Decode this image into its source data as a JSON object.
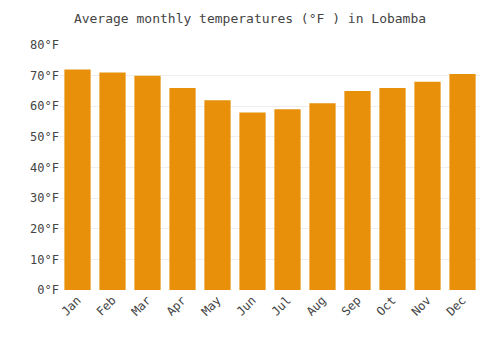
{
  "chart_data": {
    "type": "bar",
    "title": "Average monthly temperatures (°F ) in Lobamba",
    "categories": [
      "Jan",
      "Feb",
      "Mar",
      "Apr",
      "May",
      "Jun",
      "Jul",
      "Aug",
      "Sep",
      "Oct",
      "Nov",
      "Dec"
    ],
    "values": [
      72,
      71,
      70,
      66,
      62,
      58,
      59,
      61,
      65,
      66,
      68,
      70.5
    ],
    "color": "#E8900A",
    "ylim": [
      0,
      80
    ],
    "yticks": [
      {
        "value": 0,
        "label": "0°F"
      },
      {
        "value": 10,
        "label": "10°F"
      },
      {
        "value": 20,
        "label": "20°F"
      },
      {
        "value": 30,
        "label": "30°F"
      },
      {
        "value": 40,
        "label": "40°F"
      },
      {
        "value": 50,
        "label": "50°F"
      },
      {
        "value": 60,
        "label": "60°F"
      },
      {
        "value": 70,
        "label": "70°F"
      },
      {
        "value": 80,
        "label": "80°F"
      }
    ],
    "grid": true
  }
}
